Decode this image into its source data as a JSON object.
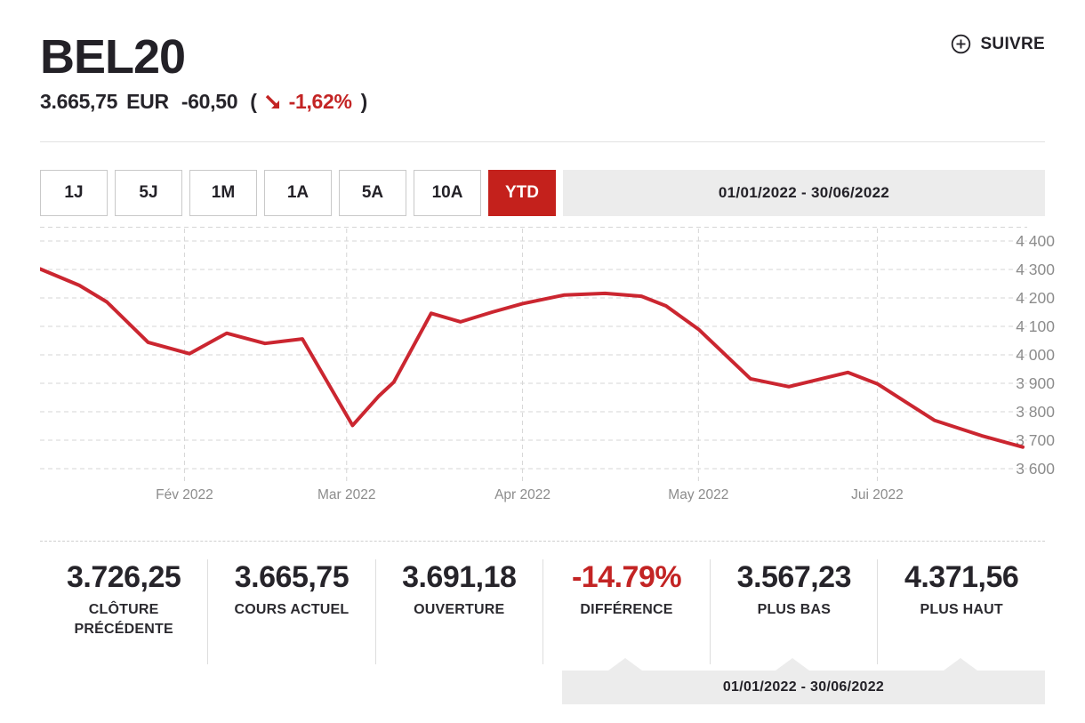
{
  "header": {
    "title": "BEL20",
    "price": "3.665,75",
    "currency": "EUR",
    "change": "-60,50",
    "paren_open": "(",
    "change_pct": "-1,62%",
    "paren_close": ")",
    "follow_label": "SUIVRE"
  },
  "toolbar": {
    "periods": [
      {
        "label": "1J",
        "active": false
      },
      {
        "label": "5J",
        "active": false
      },
      {
        "label": "1M",
        "active": false
      },
      {
        "label": "1A",
        "active": false
      },
      {
        "label": "5A",
        "active": false
      },
      {
        "label": "10A",
        "active": false
      },
      {
        "label": "YTD",
        "active": true
      }
    ],
    "date_range": "01/01/2022 - 30/06/2022"
  },
  "chart_data": {
    "type": "line",
    "title": "BEL20 YTD price",
    "grid": "dashed",
    "legend": "none",
    "ylim": [
      3550,
      4450
    ],
    "y_ticks": [
      {
        "value": 4400,
        "label": "4 400"
      },
      {
        "value": 4300,
        "label": "4 300"
      },
      {
        "value": 4200,
        "label": "4 200"
      },
      {
        "value": 4100,
        "label": "4 100"
      },
      {
        "value": 4000,
        "label": "4 000"
      },
      {
        "value": 3900,
        "label": "3 900"
      },
      {
        "value": 3800,
        "label": "3 800"
      },
      {
        "value": 3700,
        "label": "3 700"
      },
      {
        "value": 3600,
        "label": "3 600"
      }
    ],
    "x_ticks": [
      {
        "label": "Fév 2022",
        "x": 0.147
      },
      {
        "label": "Mar 2022",
        "x": 0.312
      },
      {
        "label": "Apr 2022",
        "x": 0.491
      },
      {
        "label": "May 2022",
        "x": 0.67
      },
      {
        "label": "Jui 2022",
        "x": 0.852
      }
    ],
    "series": [
      {
        "name": "BEL20",
        "color": "#cb2630",
        "points": [
          [
            0.0,
            4302
          ],
          [
            0.04,
            4244
          ],
          [
            0.068,
            4186
          ],
          [
            0.11,
            4044
          ],
          [
            0.152,
            4004
          ],
          [
            0.19,
            4076
          ],
          [
            0.229,
            4040
          ],
          [
            0.248,
            4048
          ],
          [
            0.267,
            4056
          ],
          [
            0.318,
            3752
          ],
          [
            0.345,
            3856
          ],
          [
            0.36,
            3904
          ],
          [
            0.398,
            4146
          ],
          [
            0.428,
            4116
          ],
          [
            0.46,
            4150
          ],
          [
            0.491,
            4180
          ],
          [
            0.533,
            4210
          ],
          [
            0.575,
            4216
          ],
          [
            0.612,
            4206
          ],
          [
            0.637,
            4172
          ],
          [
            0.67,
            4090
          ],
          [
            0.723,
            3916
          ],
          [
            0.762,
            3888
          ],
          [
            0.822,
            3938
          ],
          [
            0.852,
            3898
          ],
          [
            0.91,
            3770
          ],
          [
            0.958,
            3716
          ],
          [
            1.0,
            3676
          ]
        ]
      }
    ]
  },
  "stats": [
    {
      "value": "3.726,25",
      "label": "CLÔTURE PRÉCÉDENTE",
      "negative": false
    },
    {
      "value": "3.665,75",
      "label": "COURS ACTUEL",
      "negative": false
    },
    {
      "value": "3.691,18",
      "label": "OUVERTURE",
      "negative": false
    },
    {
      "value": "-14.79%",
      "label": "DIFFÉRENCE",
      "negative": true
    },
    {
      "value": "3.567,23",
      "label": "PLUS BAS",
      "negative": false
    },
    {
      "value": "4.371,56",
      "label": "PLUS HAUT",
      "negative": false
    }
  ],
  "footer": {
    "date_range": "01/01/2022 - 30/06/2022"
  },
  "colors": {
    "accent_red": "#c4211c",
    "line_red": "#cb2630",
    "text_dark": "#26242a",
    "axis_gray": "#8c8c8c",
    "bar_gray": "#ececec",
    "grid_gray": "#d6d6d6"
  }
}
